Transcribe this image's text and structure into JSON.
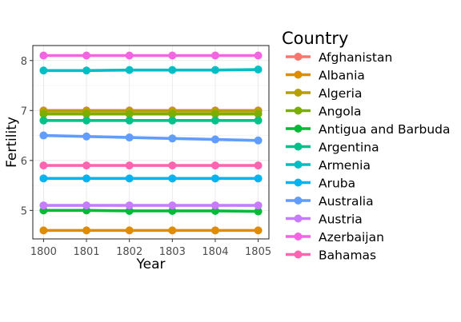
{
  "chart_data": {
    "type": "line",
    "xlabel": "Year",
    "ylabel": "Fertility",
    "x": [
      1800,
      1801,
      1802,
      1803,
      1804,
      1805
    ],
    "xlim": [
      1799.75,
      1805.25
    ],
    "ylim": [
      4.43,
      8.3
    ],
    "yticks": [
      5,
      6,
      7,
      8
    ],
    "grid": true,
    "legend_title": "Country",
    "legend_position": "right",
    "series": [
      {
        "name": "Afghanistan",
        "color": "#F8766D",
        "values": [
          7.0,
          7.0,
          7.0,
          7.0,
          7.0,
          7.0
        ]
      },
      {
        "name": "Albania",
        "color": "#DE8C00",
        "values": [
          4.6,
          4.6,
          4.6,
          4.6,
          4.6,
          4.6
        ]
      },
      {
        "name": "Algeria",
        "color": "#B79F00",
        "values": [
          6.99,
          6.99,
          6.99,
          6.99,
          6.99,
          6.99
        ]
      },
      {
        "name": "Angola",
        "color": "#7CAE00",
        "values": [
          6.93,
          6.93,
          6.93,
          6.93,
          6.93,
          6.93
        ]
      },
      {
        "name": "Antigua and Barbuda",
        "color": "#00BA38",
        "values": [
          5.0,
          5.0,
          4.99,
          4.99,
          4.99,
          4.98
        ]
      },
      {
        "name": "Argentina",
        "color": "#00C08B",
        "values": [
          6.8,
          6.8,
          6.8,
          6.8,
          6.8,
          6.8
        ]
      },
      {
        "name": "Armenia",
        "color": "#00BFC4",
        "values": [
          7.8,
          7.8,
          7.81,
          7.81,
          7.81,
          7.82
        ]
      },
      {
        "name": "Aruba",
        "color": "#00B4F0",
        "values": [
          5.64,
          5.64,
          5.64,
          5.64,
          5.64,
          5.64
        ]
      },
      {
        "name": "Australia",
        "color": "#619CFF",
        "values": [
          6.5,
          6.48,
          6.46,
          6.44,
          6.42,
          6.4
        ]
      },
      {
        "name": "Austria",
        "color": "#C77CFF",
        "values": [
          5.1,
          5.1,
          5.1,
          5.1,
          5.1,
          5.1
        ]
      },
      {
        "name": "Azerbaijan",
        "color": "#F564E3",
        "values": [
          8.1,
          8.1,
          8.1,
          8.1,
          8.1,
          8.1
        ]
      },
      {
        "name": "Bahamas",
        "color": "#FF64B0",
        "values": [
          5.9,
          5.9,
          5.9,
          5.9,
          5.9,
          5.9
        ]
      }
    ]
  }
}
